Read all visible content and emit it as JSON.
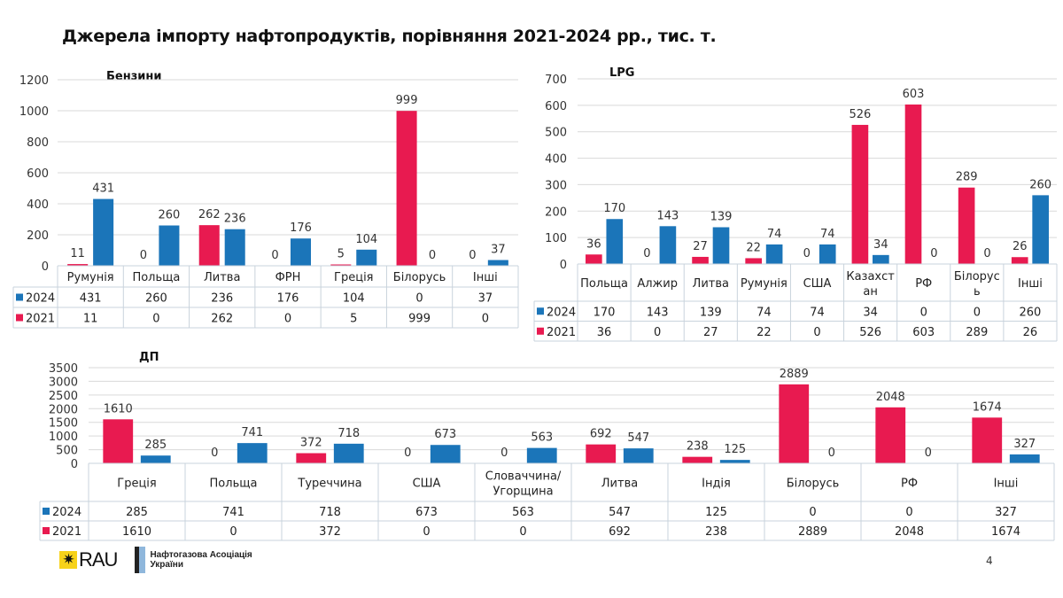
{
  "title": "Джерела імпорту нафтопродуктів, порівняння 2021-2024 рр., тис. т.",
  "page_number": "4",
  "logos": {
    "rau": "RAU",
    "nau": "Нафтогазова Асоціація України"
  },
  "colors": {
    "y2024": "#1b75b9",
    "y2021": "#e81a50",
    "grid": "#d9d9d9",
    "table_border": "#c9d3dc"
  },
  "chart_data": [
    {
      "type": "bar",
      "title": "Бензини",
      "ylim": [
        0,
        1200
      ],
      "yticks": [
        0,
        200,
        400,
        600,
        800,
        1000,
        1200
      ],
      "categories": [
        "Румунія",
        "Польща",
        "Литва",
        "ФРН",
        "Греція",
        "Білорусь",
        "Інші"
      ],
      "series": [
        {
          "name": "2024",
          "values": [
            431,
            260,
            236,
            176,
            104,
            0,
            37
          ]
        },
        {
          "name": "2021",
          "values": [
            11,
            0,
            262,
            0,
            5,
            999,
            0
          ]
        }
      ],
      "legend": "data-table"
    },
    {
      "type": "bar",
      "title": "LPG",
      "ylim": [
        0,
        700
      ],
      "yticks": [
        0,
        100,
        200,
        300,
        400,
        500,
        600,
        700
      ],
      "categories": [
        "Польща",
        "Алжир",
        "Литва",
        "Румунія",
        "США",
        "Казахст ан",
        "РФ",
        "Білорус ь",
        "Інші"
      ],
      "series": [
        {
          "name": "2024",
          "values": [
            170,
            143,
            139,
            74,
            74,
            34,
            0,
            0,
            260
          ]
        },
        {
          "name": "2021",
          "values": [
            36,
            0,
            27,
            22,
            0,
            526,
            603,
            289,
            26
          ]
        }
      ],
      "legend": "data-table"
    },
    {
      "type": "bar",
      "title": "ДП",
      "ylim": [
        0,
        3500
      ],
      "yticks": [
        0,
        500,
        1000,
        1500,
        2000,
        2500,
        3000,
        3500
      ],
      "categories": [
        "Греція",
        "Польща",
        "Туреччина",
        "США",
        "Словаччина/ Угорщина",
        "Литва",
        "Індія",
        "Білорусь",
        "РФ",
        "Інші"
      ],
      "series": [
        {
          "name": "2024",
          "values": [
            285,
            741,
            718,
            673,
            563,
            547,
            125,
            0,
            0,
            327
          ]
        },
        {
          "name": "2021",
          "values": [
            1610,
            0,
            372,
            0,
            0,
            692,
            238,
            2889,
            2048,
            1674
          ]
        }
      ],
      "legend": "data-table"
    }
  ]
}
